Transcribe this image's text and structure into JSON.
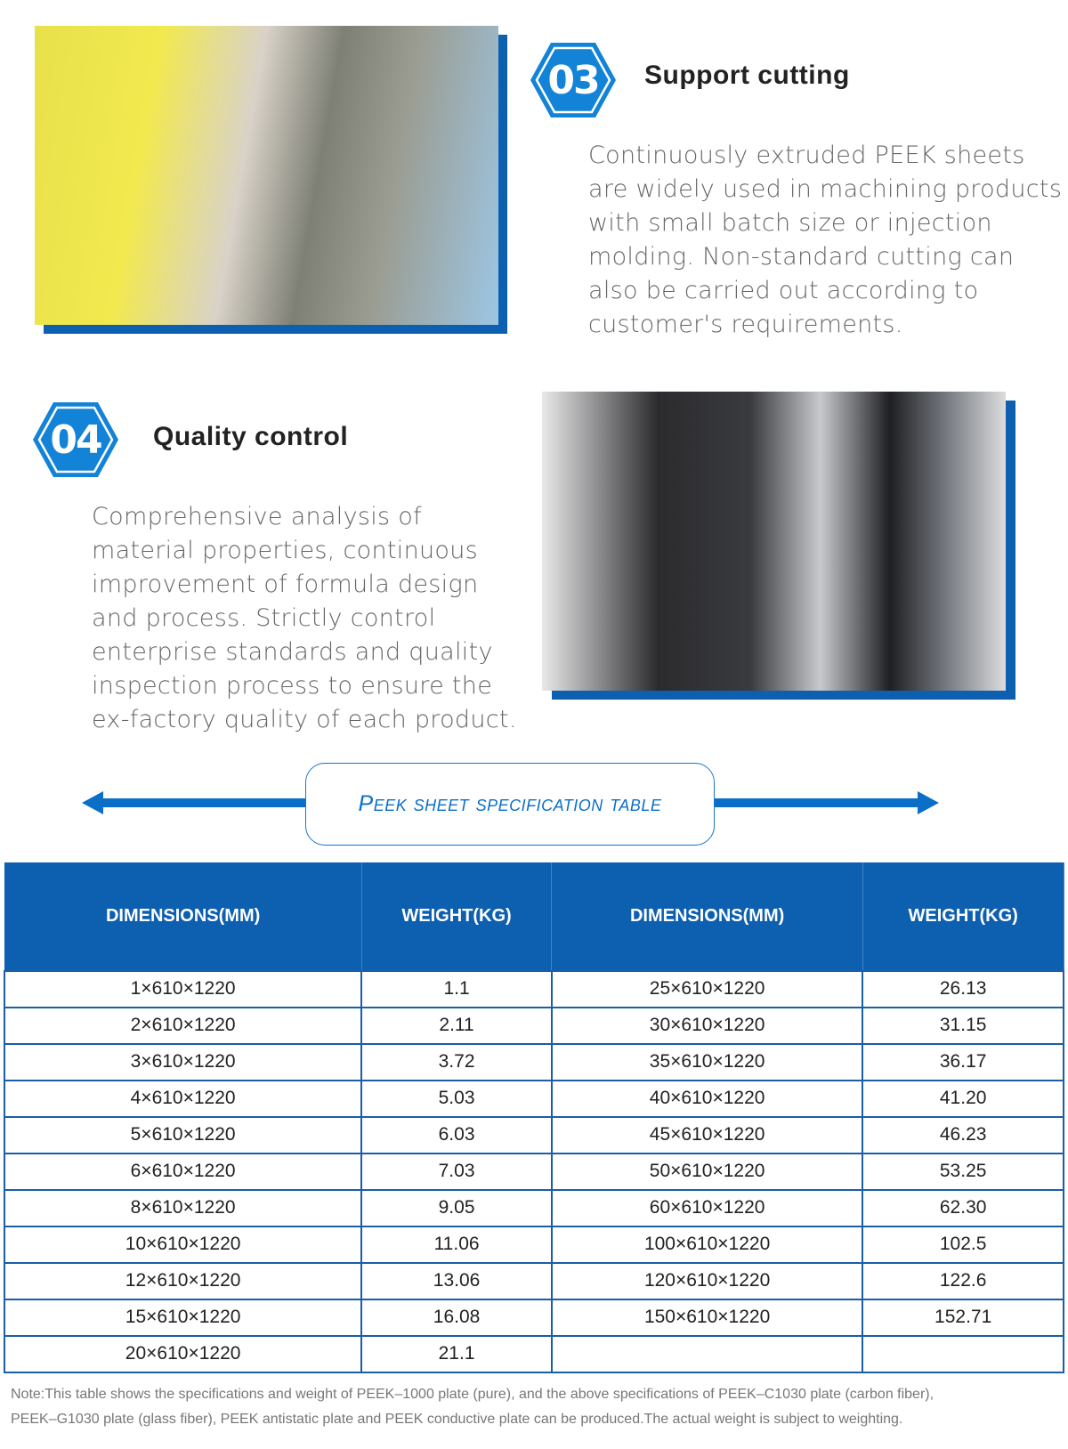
{
  "sections": [
    {
      "number": "03",
      "title": "Support cutting",
      "text": "Continuously extruded PEEK sheets are widely used in machining products with small batch size or injection molding. Non-standard cutting can also be carried out according to customer's requirements."
    },
    {
      "number": "04",
      "title": "Quality control",
      "text": "Comprehensive analysis of material properties, continuous improvement of formula design and process. Strictly control enterprise standards and quality inspection process to ensure the ex-factory quality of each product."
    }
  ],
  "spec_title": "Peek sheet specification table",
  "colors": {
    "accent": "#0d5fb0",
    "badge": "#1283d6"
  },
  "table": {
    "headers": [
      "DIMENSIONS(MM)",
      "WEIGHT(KG)",
      "DIMENSIONS(MM)",
      "WEIGHT(KG)"
    ],
    "rows": [
      [
        "1×610×1220",
        "1.1",
        "25×610×1220",
        "26.13"
      ],
      [
        "2×610×1220",
        "2.11",
        "30×610×1220",
        "31.15"
      ],
      [
        "3×610×1220",
        "3.72",
        "35×610×1220",
        "36.17"
      ],
      [
        "4×610×1220",
        "5.03",
        "40×610×1220",
        "41.20"
      ],
      [
        "5×610×1220",
        "6.03",
        "45×610×1220",
        "46.23"
      ],
      [
        "6×610×1220",
        "7.03",
        "50×610×1220",
        "53.25"
      ],
      [
        "8×610×1220",
        "9.05",
        "60×610×1220",
        "62.30"
      ],
      [
        "10×610×1220",
        "11.06",
        "100×610×1220",
        "102.5"
      ],
      [
        "12×610×1220",
        "13.06",
        "120×610×1220",
        "122.6"
      ],
      [
        "15×610×1220",
        "16.08",
        "150×610×1220",
        "152.71"
      ],
      [
        "20×610×1220",
        "21.1",
        "",
        ""
      ]
    ]
  },
  "note": [
    "Note:This table shows the specifications and weight of PEEK–1000 plate (pure), and the above specifications of PEEK–C1030 plate (carbon fiber),",
    "PEEK–G1030 plate (glass fiber), PEEK antistatic plate and PEEK conductive plate can be produced.The actual weight is subject to weighting."
  ]
}
